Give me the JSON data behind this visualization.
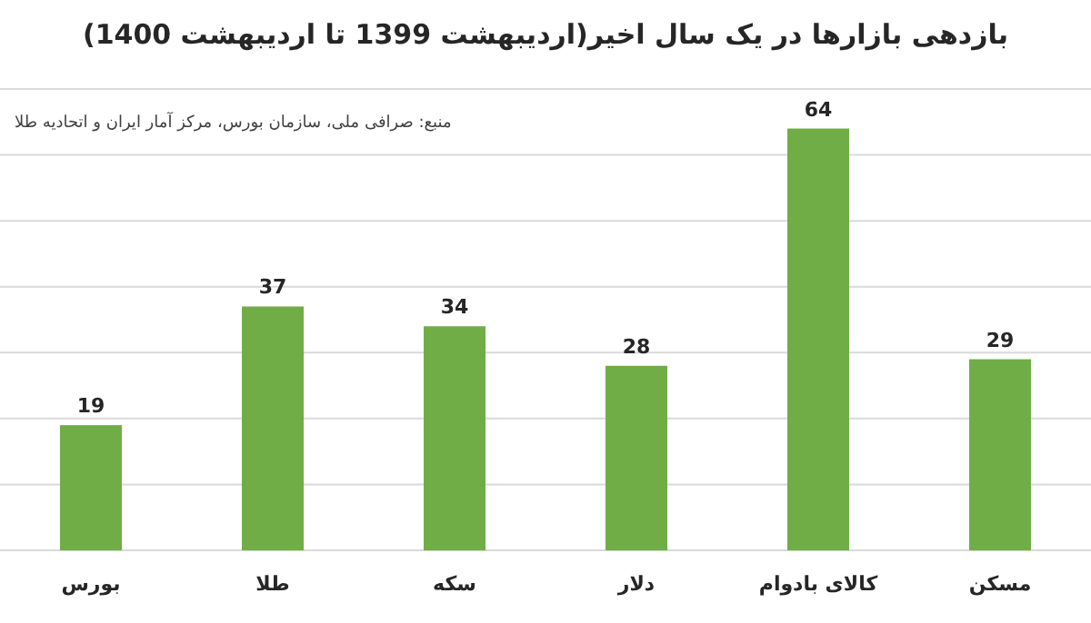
{
  "chart_data": {
    "type": "bar",
    "title": "بازدهی بازارها در یک سال اخیر(اردیبهشت 1399 تا اردیبهشت 1400)",
    "categories": [
      "بورس",
      "طلا",
      "سکه",
      "دلار",
      "کالای بادوام",
      "مسکن"
    ],
    "values": [
      19,
      37,
      34,
      28,
      64,
      29
    ],
    "color": "#70ad47",
    "data_labels": true,
    "ylim": [
      0,
      70
    ],
    "yticks": [
      {
        "value": 0,
        "label": null
      },
      {
        "value": 10,
        "label": null
      },
      {
        "value": 20,
        "label": null
      },
      {
        "value": 30,
        "label": null
      },
      {
        "value": 40,
        "label": null
      },
      {
        "value": 50,
        "label": null
      },
      {
        "value": 60,
        "label": null
      },
      {
        "value": 70,
        "label": null
      }
    ],
    "tick_labels": "x",
    "grid": "y",
    "annotations": [
      "منبع: صرافی ملی، سازمان بورس، مرکز آمار ایران و اتحادیه طلا"
    ]
  }
}
